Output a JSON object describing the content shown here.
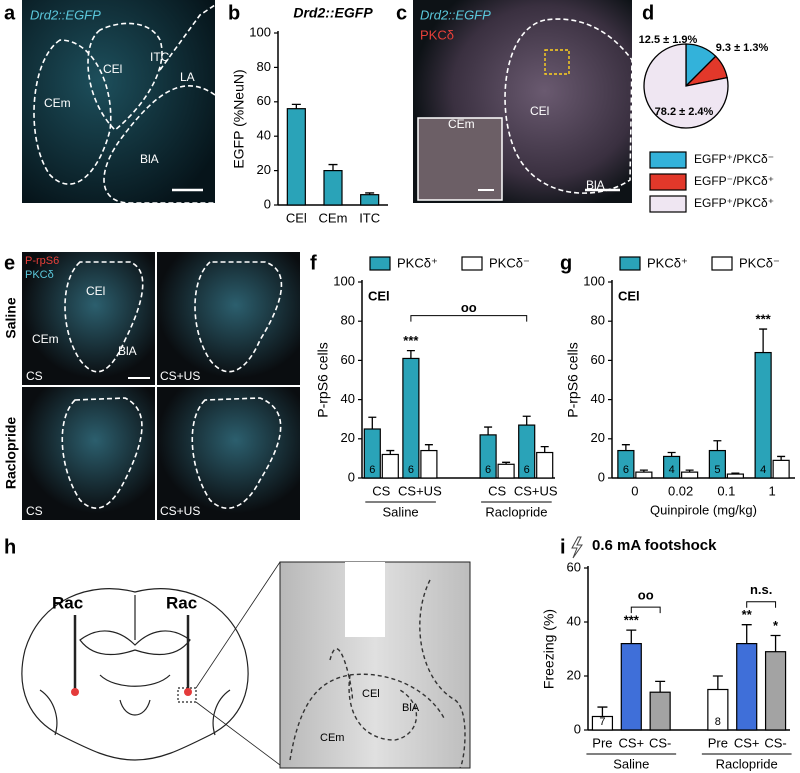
{
  "panel_letters": [
    "a",
    "b",
    "c",
    "d",
    "e",
    "f",
    "g",
    "h",
    "i"
  ],
  "micrographs": {
    "a": [
      "Drd2::EGFP",
      "CEl",
      "ITC",
      "LA",
      "CEm",
      "BlA"
    ],
    "c": [
      "Drd2::EGFP",
      "PKCδ",
      "CEm",
      "CEl",
      "BlA"
    ],
    "e": [
      "P-rpS6",
      "PKCδ",
      "Saline",
      "Raclopride",
      "CEl",
      "CEm",
      "BlA",
      "CS",
      "CS+US",
      "CS",
      "CS+US"
    ],
    "h": [
      "Rac",
      "Rac",
      "CEl",
      "CEm",
      "BlA"
    ]
  },
  "chart_data": [
    {
      "type": "bar",
      "title": "Drd2::EGFP",
      "y_label": "EGFP (%NeuN)",
      "categories": [
        "CEl",
        "CEm",
        "ITC"
      ],
      "values": [
        56,
        20,
        6
      ],
      "errors": [
        2.5,
        3.5,
        1
      ],
      "color": "#2aa3b8",
      "ylim": [
        0,
        100
      ],
      "yticks": [
        0,
        20,
        40,
        60,
        80,
        100
      ]
    },
    {
      "type": "pie",
      "values": [
        12.5,
        9.3,
        78.2
      ],
      "value_labels": [
        "12.5 ± 1.9%",
        "9.3 ± 1.3%",
        "78.2 ± 2.4%"
      ],
      "labels": [
        "EGFP⁺/PKCδ⁻",
        "EGFP⁻/PKCδ⁺",
        "EGFP⁺/PKCδ⁺"
      ],
      "colors": [
        "#33b2da",
        "#e2382a",
        "#efe6f2"
      ]
    },
    {
      "type": "grouped_bar",
      "y_label": "P-rpS6 cells",
      "categories": [
        "CS",
        "CS+US",
        "CS",
        "CS+US"
      ],
      "groups": [
        "Saline",
        "Raclopride"
      ],
      "series": [
        {
          "name": "PKCδ⁺",
          "color": "#2aa3b8",
          "values": [
            25,
            61,
            22,
            27
          ],
          "errors": [
            6,
            4,
            4,
            4.5
          ],
          "n": [
            6,
            6,
            6,
            6
          ]
        },
        {
          "name": "PKCδ⁻",
          "color": "#ffffff",
          "values": [
            12,
            14,
            7,
            13
          ],
          "errors": [
            2,
            3,
            1,
            3
          ]
        }
      ],
      "annotations": [
        "CEl",
        "***",
        "oo"
      ],
      "ylim": [
        0,
        100
      ],
      "yticks": [
        0,
        20,
        40,
        60,
        80,
        100
      ]
    },
    {
      "type": "grouped_bar",
      "y_label": "P-rpS6 cells",
      "x_label": "Quinpirole (mg/kg)",
      "categories": [
        "0",
        "0.02",
        "0.1",
        "1"
      ],
      "series": [
        {
          "name": "PKCδ⁺",
          "color": "#2aa3b8",
          "values": [
            14,
            11,
            14,
            64
          ],
          "errors": [
            3,
            2,
            5,
            12
          ],
          "n": [
            6,
            4,
            5,
            4
          ]
        },
        {
          "name": "PKCδ⁻",
          "color": "#ffffff",
          "values": [
            3,
            3,
            2,
            9
          ],
          "errors": [
            1,
            1,
            0.5,
            2
          ]
        }
      ],
      "annotations": [
        "CEl",
        "***"
      ],
      "ylim": [
        0,
        100
      ],
      "yticks": [
        0,
        20,
        40,
        60,
        80,
        100
      ]
    },
    {
      "type": "bar",
      "title": "0.6 mA footshock",
      "y_label": "Freezing (%)",
      "categories": [
        "Pre",
        "CS+",
        "CS-",
        "Pre",
        "CS+",
        "CS-"
      ],
      "groups": [
        "Saline",
        "Raclopride"
      ],
      "values": [
        5,
        32,
        14,
        15,
        32,
        29
      ],
      "errors": [
        3.5,
        5,
        4,
        5,
        7,
        6
      ],
      "colors": [
        "#ffffff",
        "#3f6fd9",
        "#a3a3a3",
        "#ffffff",
        "#3f6fd9",
        "#a3a3a3"
      ],
      "n": [
        7,
        null,
        null,
        8,
        null,
        null
      ],
      "annotations": [
        "***",
        "oo",
        "**",
        "n.s.",
        "*"
      ],
      "ylim": [
        0,
        60
      ],
      "yticks": [
        0,
        20,
        40,
        60
      ]
    }
  ]
}
